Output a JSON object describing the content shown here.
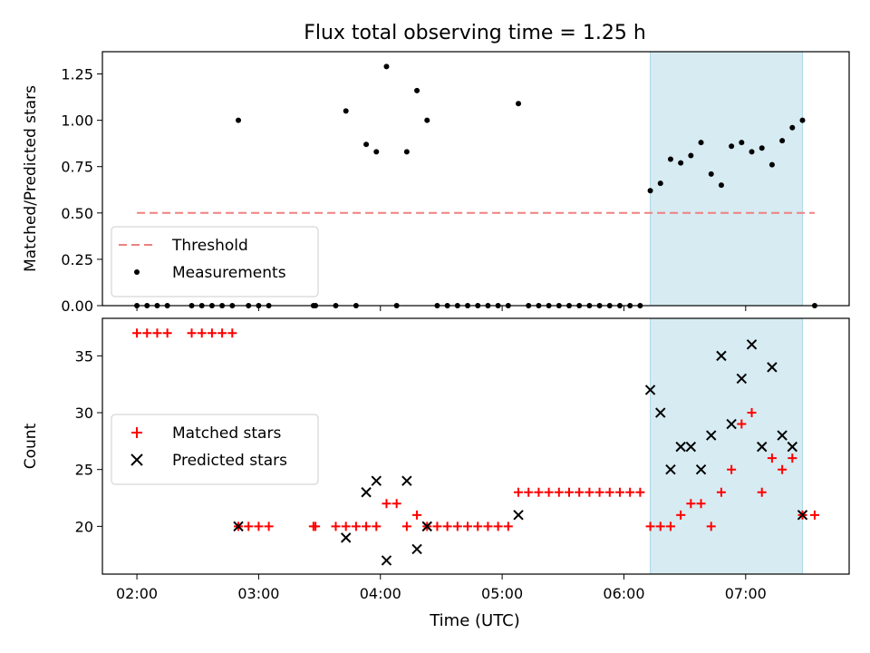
{
  "chart_data": {
    "title": "Flux total observing time = 1.25 h",
    "xlabel": "Time (UTC)",
    "x_unit": "hours UTC",
    "xlim": [
      "01:43",
      "07:51"
    ],
    "xticks": [
      {
        "t": "02:00",
        "label": "02:00"
      },
      {
        "t": "03:00",
        "label": "03:00"
      },
      {
        "t": "04:00",
        "label": "04:00"
      },
      {
        "t": "05:00",
        "label": "05:00"
      },
      {
        "t": "06:00",
        "label": "06:00"
      },
      {
        "t": "07:00",
        "label": "07:00"
      }
    ],
    "shaded_region": {
      "start": "06:13",
      "end": "07:28",
      "color": "#add8e6"
    },
    "panels": [
      {
        "type": "scatter",
        "ylabel": "Matched/Predicted stars",
        "ylim": [
          0,
          1.37
        ],
        "yticks": [
          "0.00",
          "0.25",
          "0.50",
          "0.75",
          "1.00",
          "1.25"
        ],
        "legend_position": "lower-left",
        "threshold": {
          "name": "Threshold",
          "value": 0.5,
          "x_start": "02:00",
          "x_end": "07:34",
          "color": "#f08080"
        },
        "series": [
          {
            "name": "Measurements",
            "marker": "dot",
            "color": "#000000",
            "points": [
              [
                "02:00",
                0
              ],
              [
                "02:05",
                0
              ],
              [
                "02:10",
                0
              ],
              [
                "02:15",
                0
              ],
              [
                "02:27",
                0
              ],
              [
                "02:32",
                0
              ],
              [
                "02:37",
                0
              ],
              [
                "02:42",
                0
              ],
              [
                "02:47",
                0
              ],
              [
                "02:50",
                1.0
              ],
              [
                "02:55",
                0
              ],
              [
                "03:00",
                0
              ],
              [
                "03:05",
                0
              ],
              [
                "03:27",
                0
              ],
              [
                "03:28",
                0
              ],
              [
                "03:38",
                0
              ],
              [
                "03:43",
                1.05
              ],
              [
                "03:48",
                0
              ],
              [
                "03:53",
                0.87
              ],
              [
                "03:58",
                0.83
              ],
              [
                "04:03",
                1.29
              ],
              [
                "04:08",
                0
              ],
              [
                "04:13",
                0.83
              ],
              [
                "04:18",
                1.16
              ],
              [
                "04:23",
                1.0
              ],
              [
                "04:28",
                0
              ],
              [
                "04:33",
                0
              ],
              [
                "04:38",
                0
              ],
              [
                "04:43",
                0
              ],
              [
                "04:48",
                0
              ],
              [
                "04:53",
                0
              ],
              [
                "04:58",
                0
              ],
              [
                "05:03",
                0
              ],
              [
                "05:08",
                1.09
              ],
              [
                "05:13",
                0
              ],
              [
                "05:18",
                0
              ],
              [
                "05:23",
                0
              ],
              [
                "05:28",
                0
              ],
              [
                "05:33",
                0
              ],
              [
                "05:38",
                0
              ],
              [
                "05:43",
                0
              ],
              [
                "05:48",
                0
              ],
              [
                "05:53",
                0
              ],
              [
                "05:58",
                0
              ],
              [
                "06:03",
                0
              ],
              [
                "06:08",
                0
              ],
              [
                "06:13",
                0.62
              ],
              [
                "06:18",
                0.66
              ],
              [
                "06:23",
                0.79
              ],
              [
                "06:28",
                0.77
              ],
              [
                "06:33",
                0.81
              ],
              [
                "06:38",
                0.88
              ],
              [
                "06:43",
                0.71
              ],
              [
                "06:48",
                0.65
              ],
              [
                "06:53",
                0.86
              ],
              [
                "06:58",
                0.88
              ],
              [
                "07:03",
                0.83
              ],
              [
                "07:08",
                0.85
              ],
              [
                "07:13",
                0.76
              ],
              [
                "07:18",
                0.89
              ],
              [
                "07:23",
                0.96
              ],
              [
                "07:28",
                1.0
              ],
              [
                "07:34",
                0
              ]
            ]
          }
        ]
      },
      {
        "type": "scatter",
        "ylabel": "Count",
        "ylim": [
          15.8,
          38.3
        ],
        "yticks": [
          "20",
          "25",
          "30",
          "35"
        ],
        "legend_position": "center-left",
        "series": [
          {
            "name": "Matched stars",
            "marker": "plus",
            "color": "#ff0000",
            "points": [
              [
                "02:00",
                37
              ],
              [
                "02:05",
                37
              ],
              [
                "02:10",
                37
              ],
              [
                "02:15",
                37
              ],
              [
                "02:27",
                37
              ],
              [
                "02:32",
                37
              ],
              [
                "02:37",
                37
              ],
              [
                "02:42",
                37
              ],
              [
                "02:47",
                37
              ],
              [
                "02:50",
                20
              ],
              [
                "02:55",
                20
              ],
              [
                "03:00",
                20
              ],
              [
                "03:05",
                20
              ],
              [
                "03:27",
                20
              ],
              [
                "03:28",
                20
              ],
              [
                "03:38",
                20
              ],
              [
                "03:43",
                20
              ],
              [
                "03:48",
                20
              ],
              [
                "03:53",
                20
              ],
              [
                "03:58",
                20
              ],
              [
                "04:03",
                22
              ],
              [
                "04:08",
                22
              ],
              [
                "04:13",
                20
              ],
              [
                "04:18",
                21
              ],
              [
                "04:23",
                20
              ],
              [
                "04:28",
                20
              ],
              [
                "04:33",
                20
              ],
              [
                "04:38",
                20
              ],
              [
                "04:43",
                20
              ],
              [
                "04:48",
                20
              ],
              [
                "04:53",
                20
              ],
              [
                "04:58",
                20
              ],
              [
                "05:03",
                20
              ],
              [
                "05:08",
                23
              ],
              [
                "05:13",
                23
              ],
              [
                "05:18",
                23
              ],
              [
                "05:23",
                23
              ],
              [
                "05:28",
                23
              ],
              [
                "05:33",
                23
              ],
              [
                "05:38",
                23
              ],
              [
                "05:43",
                23
              ],
              [
                "05:48",
                23
              ],
              [
                "05:53",
                23
              ],
              [
                "05:58",
                23
              ],
              [
                "06:03",
                23
              ],
              [
                "06:08",
                23
              ],
              [
                "06:13",
                20
              ],
              [
                "06:18",
                20
              ],
              [
                "06:23",
                20
              ],
              [
                "06:28",
                21
              ],
              [
                "06:33",
                22
              ],
              [
                "06:38",
                22
              ],
              [
                "06:43",
                20
              ],
              [
                "06:48",
                23
              ],
              [
                "06:53",
                25
              ],
              [
                "06:58",
                29
              ],
              [
                "07:03",
                30
              ],
              [
                "07:08",
                23
              ],
              [
                "07:13",
                26
              ],
              [
                "07:18",
                25
              ],
              [
                "07:23",
                26
              ],
              [
                "07:28",
                21
              ],
              [
                "07:34",
                21
              ]
            ]
          },
          {
            "name": "Predicted stars",
            "marker": "x",
            "color": "#000000",
            "points": [
              [
                "02:50",
                20
              ],
              [
                "03:43",
                19
              ],
              [
                "03:53",
                23
              ],
              [
                "03:58",
                24
              ],
              [
                "04:03",
                17
              ],
              [
                "04:13",
                24
              ],
              [
                "04:18",
                18
              ],
              [
                "04:23",
                20
              ],
              [
                "05:08",
                21
              ],
              [
                "06:13",
                32
              ],
              [
                "06:18",
                30
              ],
              [
                "06:23",
                25
              ],
              [
                "06:28",
                27
              ],
              [
                "06:33",
                27
              ],
              [
                "06:38",
                25
              ],
              [
                "06:43",
                28
              ],
              [
                "06:48",
                35
              ],
              [
                "06:53",
                29
              ],
              [
                "06:58",
                33
              ],
              [
                "07:03",
                36
              ],
              [
                "07:08",
                27
              ],
              [
                "07:13",
                34
              ],
              [
                "07:18",
                28
              ],
              [
                "07:23",
                27
              ],
              [
                "07:28",
                21
              ]
            ]
          }
        ]
      }
    ]
  }
}
